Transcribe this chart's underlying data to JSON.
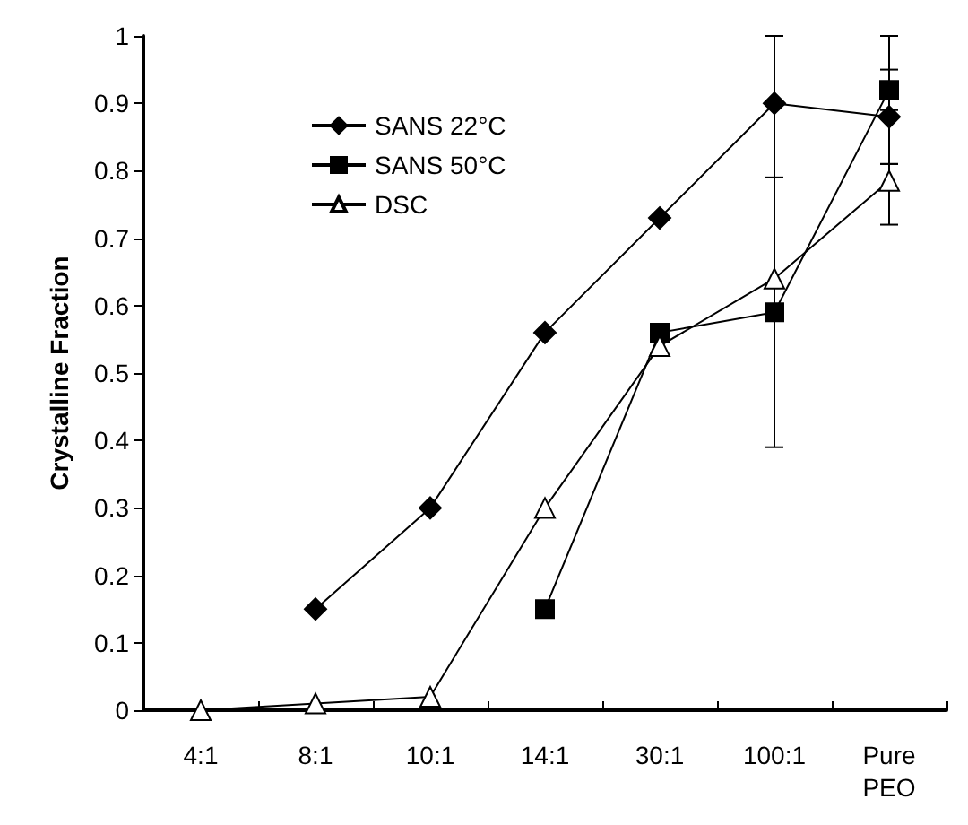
{
  "chart_data": {
    "type": "line",
    "ylabel": "Crystalline Fraction",
    "categories": [
      "4:1",
      "8:1",
      "10:1",
      "14:1",
      "30:1",
      "100:1",
      "Pure\nPEO"
    ],
    "series": [
      {
        "name": "SANS 22°C",
        "color": "#000000",
        "marker": "diamond",
        "values": [
          null,
          0.15,
          0.3,
          0.56,
          0.73,
          0.9,
          0.88
        ],
        "errors": [
          null,
          null,
          null,
          null,
          null,
          [
            0.79,
            1.0
          ],
          [
            0.81,
            0.95
          ]
        ]
      },
      {
        "name": "SANS 50°C",
        "color": "#000000",
        "marker": "square",
        "values": [
          null,
          null,
          null,
          0.15,
          0.56,
          0.59,
          0.92
        ],
        "errors": [
          null,
          null,
          null,
          null,
          null,
          [
            0.39,
            0.79
          ],
          [
            0.89,
            1.0
          ]
        ]
      },
      {
        "name": "DSC",
        "color": "#000000",
        "marker": "triangle",
        "values": [
          0,
          0.01,
          0.02,
          0.3,
          0.54,
          0.64,
          0.785
        ],
        "errors": [
          null,
          null,
          null,
          null,
          null,
          null,
          [
            0.72,
            0.81
          ]
        ]
      }
    ],
    "ylim": [
      0,
      1
    ],
    "yticks": [
      0,
      0.1,
      0.2,
      0.3,
      0.4,
      0.5,
      0.6,
      0.7,
      0.8,
      0.9,
      1
    ],
    "grid": false,
    "legend": "top left",
    "line_style": "solid"
  }
}
